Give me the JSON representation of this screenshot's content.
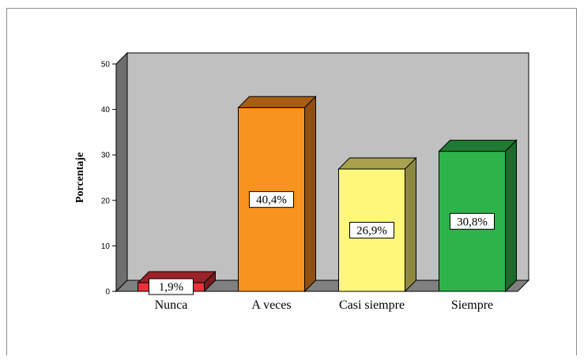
{
  "chart_data": {
    "type": "bar",
    "categories": [
      "Nunca",
      "A veces",
      "Casi siempre",
      "Siempre"
    ],
    "values": [
      1.9,
      40.4,
      26.9,
      30.8
    ],
    "value_labels": [
      "1,9%",
      "40,4%",
      "26,9%",
      "30,8%"
    ],
    "ylabel": "Porcentaje",
    "ylim": [
      0,
      50
    ],
    "yticks": [
      "0",
      "10",
      "20",
      "30",
      "40",
      "50"
    ],
    "three_d": true,
    "colors": {
      "Nunca": {
        "front": "#e8313a",
        "top": "#9a2228",
        "side": "#7a1a1f"
      },
      "A veces": {
        "front": "#f7931e",
        "top": "#a95e14",
        "side": "#8f4f10"
      },
      "Casi siempre": {
        "front": "#fdf87a",
        "top": "#a8a24c",
        "side": "#8e8940"
      },
      "Siempre": {
        "front": "#2db34a",
        "top": "#1f7a33",
        "side": "#1a6a2b"
      }
    },
    "wall_color": "#c0c0c0",
    "floor_color": "#808080"
  }
}
